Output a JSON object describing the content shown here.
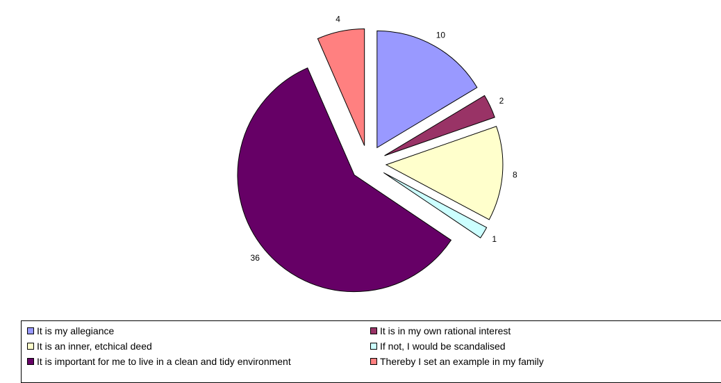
{
  "chart_data": {
    "type": "pie",
    "title": "",
    "categories": [
      "It is my allegiance",
      "It is in my own rational interest",
      "It is an inner, etchical deed",
      "If not, I would be scandalised",
      "It is important for me to live in a clean and tidy environment",
      "Thereby I set an example in my family"
    ],
    "values": [
      10,
      2,
      8,
      1,
      36,
      4
    ],
    "colors": [
      "#9999ff",
      "#993366",
      "#ffffcc",
      "#ccffff",
      "#660066",
      "#ff8080"
    ],
    "exploded": true,
    "legend": "bottom"
  }
}
